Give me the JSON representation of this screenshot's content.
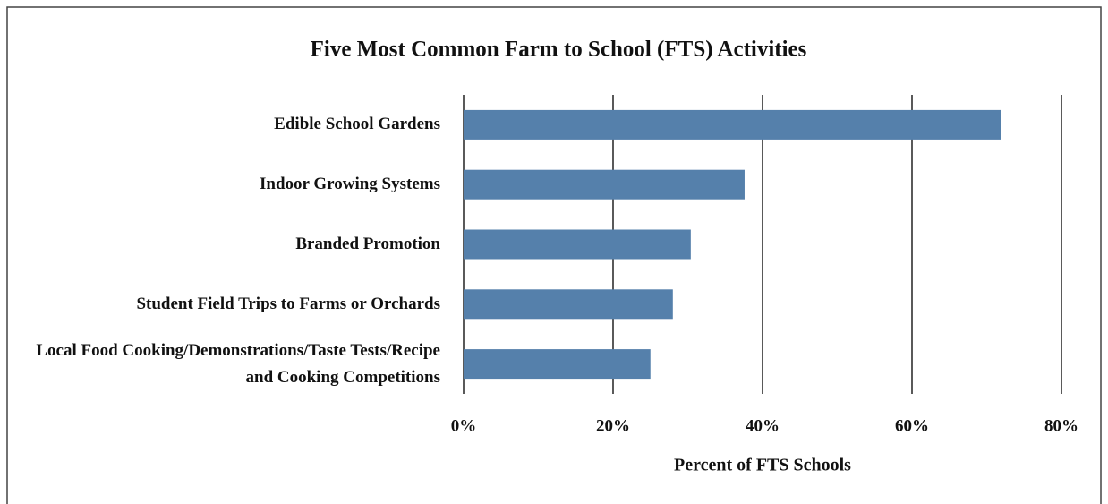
{
  "chart_data": {
    "type": "bar",
    "orientation": "horizontal",
    "title": "Five Most Common Farm to School (FTS) Activities",
    "categories": [
      "Edible School Gardens",
      "Indoor Growing Systems",
      "Branded Promotion",
      "Student Field Trips to Farms or Orchards",
      "Local Food Cooking/Demonstrations/Taste Tests/Recipe and Cooking Competitions"
    ],
    "values": [
      71.9,
      37.6,
      30.4,
      28.0,
      25.0
    ],
    "color": "#5580ab",
    "xlabel": "Percent of FTS Schools",
    "xlim": [
      0,
      80
    ],
    "xticks": [
      {
        "value": 0,
        "label": "0%"
      },
      {
        "value": 20,
        "label": "20%"
      },
      {
        "value": 40,
        "label": "40%"
      },
      {
        "value": 60,
        "label": "60%"
      },
      {
        "value": 80,
        "label": "80%"
      }
    ],
    "grid": true
  }
}
